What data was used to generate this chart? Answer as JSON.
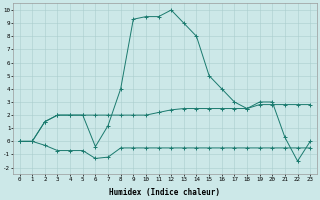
{
  "xlabel": "Humidex (Indice chaleur)",
  "background_color": "#cce8e8",
  "line_color": "#1a7a6e",
  "grid_color": "#aacece",
  "xlim": [
    -0.5,
    23.5
  ],
  "ylim": [
    -2.5,
    10.5
  ],
  "xticks": [
    0,
    1,
    2,
    3,
    4,
    5,
    6,
    7,
    8,
    9,
    10,
    11,
    12,
    13,
    14,
    15,
    16,
    17,
    18,
    19,
    20,
    21,
    22,
    23
  ],
  "yticks": [
    -2,
    -1,
    0,
    1,
    2,
    3,
    4,
    5,
    6,
    7,
    8,
    9,
    10
  ],
  "curve_main_x": [
    0,
    1,
    2,
    3,
    4,
    5,
    6,
    7,
    8,
    9,
    10,
    11,
    12,
    13,
    14,
    15,
    16,
    17,
    18,
    19,
    20,
    21,
    22,
    23
  ],
  "curve_main_y": [
    0,
    0,
    1.5,
    2.0,
    2.0,
    2.0,
    -0.4,
    1.2,
    4.0,
    9.3,
    9.5,
    9.5,
    10.0,
    9.0,
    8.0,
    5.0,
    4.0,
    3.0,
    2.5,
    3.0,
    3.0,
    0.3,
    -1.5,
    0.0
  ],
  "curve_upper_x": [
    0,
    1,
    2,
    3,
    4,
    5,
    6,
    7,
    8,
    9,
    10,
    11,
    12,
    13,
    14,
    15,
    16,
    17,
    18,
    19,
    20,
    21,
    22,
    23
  ],
  "curve_upper_y": [
    0,
    0,
    1.5,
    2.0,
    2.0,
    2.0,
    2.0,
    2.0,
    2.0,
    2.0,
    2.0,
    2.2,
    2.4,
    2.5,
    2.5,
    2.5,
    2.5,
    2.5,
    2.5,
    2.8,
    2.8,
    2.8,
    2.8,
    2.8
  ],
  "curve_lower_x": [
    0,
    1,
    2,
    3,
    4,
    5,
    6,
    7,
    8,
    9,
    10,
    11,
    12,
    13,
    14,
    15,
    16,
    17,
    18,
    19,
    20,
    21,
    22,
    23
  ],
  "curve_lower_y": [
    0,
    0,
    -0.3,
    -0.7,
    -0.7,
    -0.7,
    -1.3,
    -1.2,
    -0.5,
    -0.5,
    -0.5,
    -0.5,
    -0.5,
    -0.5,
    -0.5,
    -0.5,
    -0.5,
    -0.5,
    -0.5,
    -0.5,
    -0.5,
    -0.5,
    -0.5,
    -0.5
  ]
}
